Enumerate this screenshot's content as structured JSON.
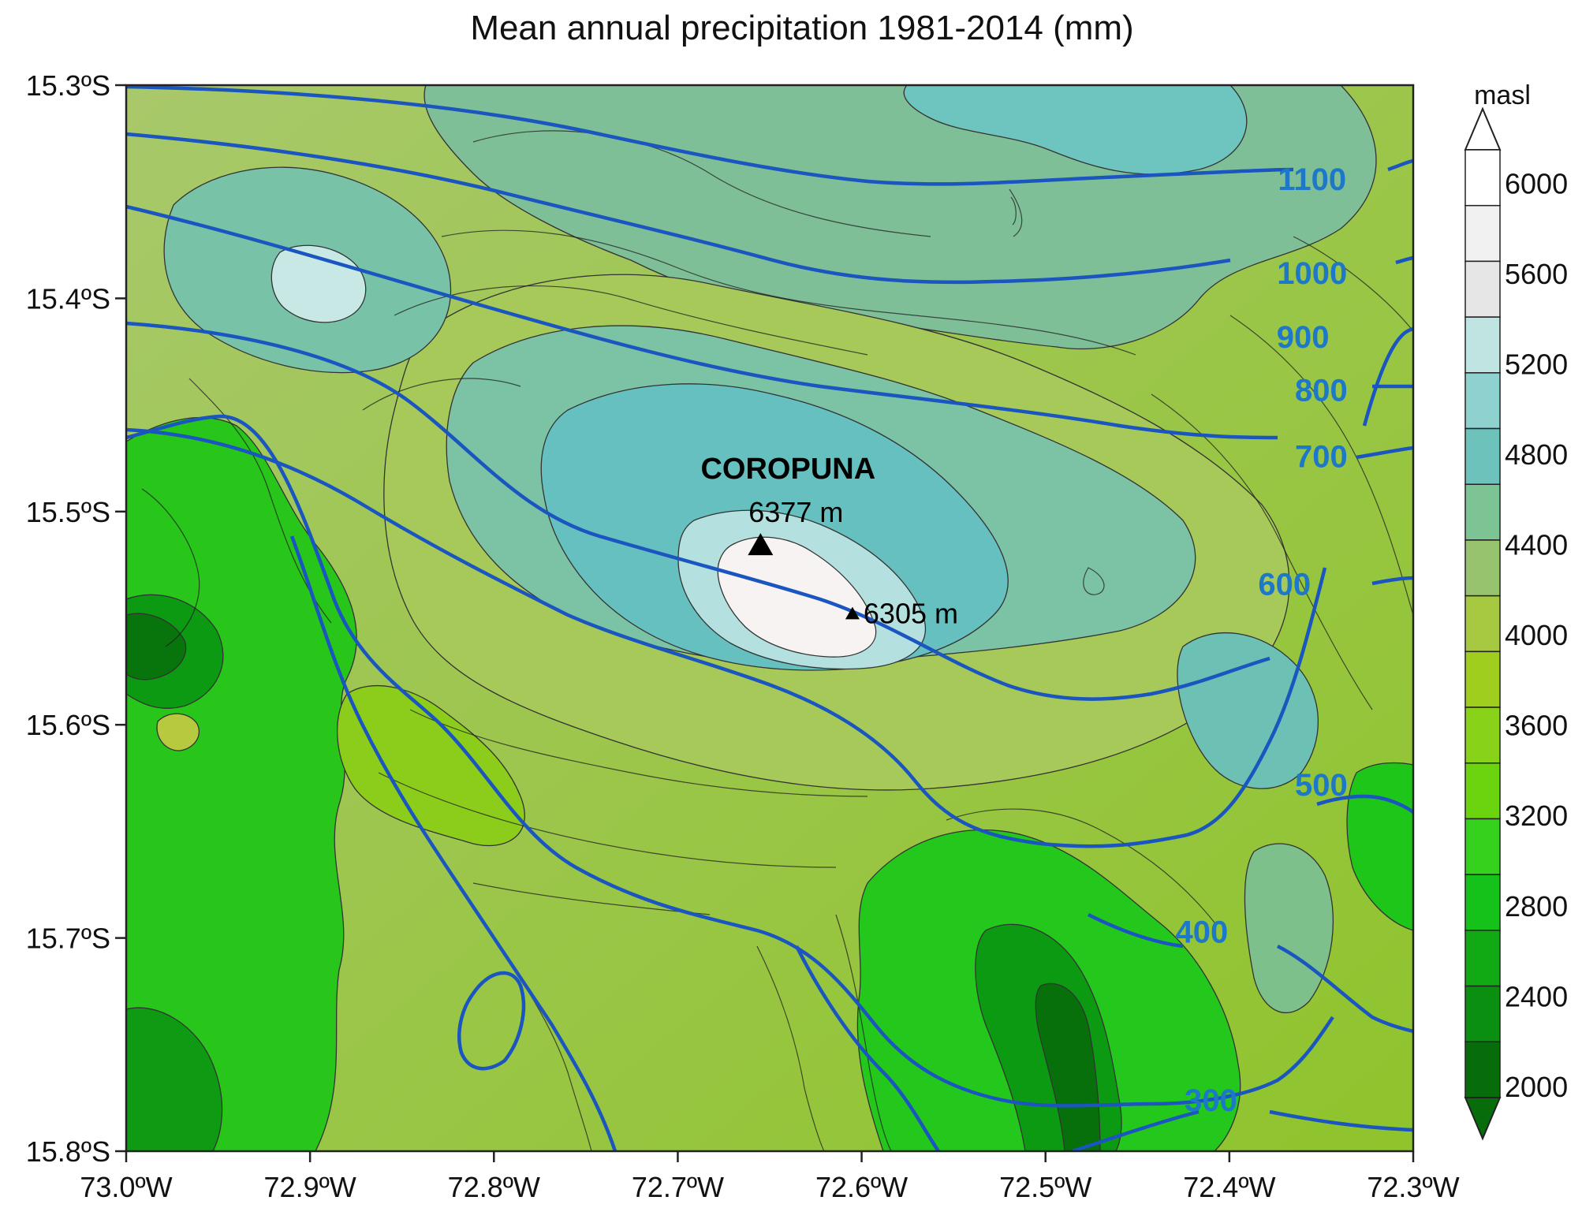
{
  "title": "Mean annual precipitation 1981-2014 (mm)",
  "colorbar": {
    "unit": "masl",
    "tick_labels": [
      "6000",
      "5600",
      "5200",
      "4800",
      "4400",
      "4000",
      "3600",
      "3200",
      "2800",
      "2400",
      "2000"
    ],
    "colors": [
      "#ffffff",
      "#f1f1f1",
      "#e6e6e6",
      "#bfe4e2",
      "#8fd1cf",
      "#6dc2bb",
      "#7dc494",
      "#97c26e",
      "#a7c941",
      "#9fce1e",
      "#88d21a",
      "#6cd40e",
      "#35d11c",
      "#14c21a",
      "#11aa14",
      "#0b8f10",
      "#076d0b"
    ],
    "colors_note_key": "top-to-bottom"
  },
  "axes": {
    "y_labels": [
      "15.3ºS",
      "15.4ºS",
      "15.5ºS",
      "15.6ºS",
      "15.7ºS",
      "15.8ºS"
    ],
    "x_labels": [
      "73.0ºW",
      "72.9ºW",
      "72.8ºW",
      "72.7ºW",
      "72.6ºW",
      "72.5ºW",
      "72.4ºW",
      "72.3ºW"
    ],
    "lat_range": [
      -15.8,
      -15.3
    ],
    "lon_range": [
      -73.0,
      -72.3
    ]
  },
  "peaks": [
    {
      "name": "COROPUNA",
      "elevation": "6377 m",
      "lon": -72.655,
      "lat": -15.516
    },
    {
      "name": "",
      "elevation": "6305 m",
      "lon": -72.605,
      "lat": -15.548
    }
  ],
  "isohyets": [
    {
      "value": "1100",
      "label_lon": -72.355,
      "label_lat": -15.344
    },
    {
      "value": "1000",
      "label_lon": -72.355,
      "label_lat": -15.388
    },
    {
      "value": "900",
      "label_lon": -72.36,
      "label_lat": -15.418
    },
    {
      "value": "800",
      "label_lon": -72.35,
      "label_lat": -15.443
    },
    {
      "value": "700",
      "label_lon": -72.35,
      "label_lat": -15.474
    },
    {
      "value": "600",
      "label_lon": -72.37,
      "label_lat": -15.534
    },
    {
      "value": "500",
      "label_lon": -72.35,
      "label_lat": -15.628
    },
    {
      "value": "400",
      "label_lon": -72.415,
      "label_lat": -15.697
    },
    {
      "value": "300",
      "label_lon": -72.41,
      "label_lat": -15.776
    }
  ],
  "colors": {
    "isohyet": "#1a55c0",
    "isohyet_label": "#1e78c8",
    "contour": "#222222"
  }
}
